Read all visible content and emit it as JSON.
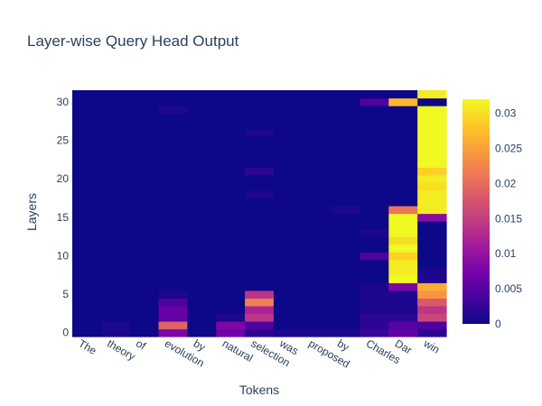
{
  "chart_data": {
    "type": "heatmap",
    "title": "Layer-wise Query Head Output",
    "xlabel": "Tokens",
    "ylabel": "Layers",
    "x": [
      "The",
      "theory",
      "of",
      "evolution",
      "by",
      "natural",
      "selection",
      "was",
      "proposed",
      "by",
      "Charles",
      "Dar",
      "win"
    ],
    "y_range": [
      0,
      31
    ],
    "y_ticks": [
      "0",
      "5",
      "10",
      "15",
      "20",
      "25",
      "30"
    ],
    "colorbar": {
      "range": [
        0,
        0.032
      ],
      "ticks": [
        "0",
        "0.005",
        "0.01",
        "0.015",
        "0.02",
        "0.025",
        "0.03"
      ],
      "colorscale": [
        "#0d0887",
        "#46039f",
        "#7201a8",
        "#9c179e",
        "#bd3786",
        "#d8576b",
        "#ed7953",
        "#fb9f3a",
        "#fdca26",
        "#f0f921"
      ]
    },
    "z": [
      [
        0.0,
        0.001,
        0.0,
        0.008,
        0.0,
        0.007,
        0.002,
        0.001,
        0.001,
        0.001,
        0.003,
        0.006,
        0.002
      ],
      [
        0.0,
        0.001,
        0.0,
        0.019,
        0.0,
        0.008,
        0.004,
        0.0,
        0.0,
        0.0,
        0.002,
        0.005,
        0.004
      ],
      [
        0.0,
        0.0,
        0.0,
        0.006,
        0.0,
        0.001,
        0.014,
        0.0,
        0.0,
        0.0,
        0.002,
        0.002,
        0.016
      ],
      [
        0.0,
        0.0,
        0.0,
        0.006,
        0.0,
        0.0,
        0.012,
        0.0,
        0.0,
        0.0,
        0.001,
        0.001,
        0.014
      ],
      [
        0.0,
        0.0,
        0.0,
        0.004,
        0.0,
        0.0,
        0.022,
        0.0,
        0.0,
        0.0,
        0.001,
        0.001,
        0.018
      ],
      [
        0.0,
        0.0,
        0.0,
        0.001,
        0.0,
        0.0,
        0.014,
        0.0,
        0.0,
        0.0,
        0.001,
        0.001,
        0.024
      ],
      [
        0.0,
        0.0,
        0.0,
        0.0,
        0.0,
        0.0,
        0.0,
        0.0,
        0.0,
        0.0,
        0.001,
        0.008,
        0.026
      ],
      [
        0.0,
        0.0,
        0.0,
        0.0,
        0.0,
        0.0,
        0.0,
        0.0,
        0.0,
        0.0,
        0.0,
        0.032,
        0.001
      ],
      [
        0.0,
        0.0,
        0.0,
        0.0,
        0.0,
        0.0,
        0.0,
        0.0,
        0.0,
        0.0,
        0.0,
        0.031,
        0.001
      ],
      [
        0.0,
        0.0,
        0.0,
        0.0,
        0.0,
        0.0,
        0.0,
        0.0,
        0.0,
        0.0,
        0.0,
        0.031,
        0.0
      ],
      [
        0.0,
        0.0,
        0.0,
        0.0,
        0.0,
        0.0,
        0.0,
        0.0,
        0.0,
        0.0,
        0.004,
        0.029,
        0.0
      ],
      [
        0.0,
        0.0,
        0.0,
        0.0,
        0.0,
        0.0,
        0.0,
        0.0,
        0.0,
        0.0,
        0.0,
        0.032,
        0.0
      ],
      [
        0.0,
        0.0,
        0.0,
        0.0,
        0.0,
        0.0,
        0.0,
        0.0,
        0.0,
        0.0,
        0.0,
        0.03,
        0.0
      ],
      [
        0.0,
        0.0,
        0.0,
        0.0,
        0.0,
        0.0,
        0.0,
        0.0,
        0.0,
        0.0,
        0.001,
        0.032,
        0.0
      ],
      [
        0.0,
        0.0,
        0.0,
        0.0,
        0.0,
        0.0,
        0.0,
        0.0,
        0.0,
        0.0,
        0.0,
        0.032,
        0.0
      ],
      [
        0.0,
        0.0,
        0.0,
        0.0,
        0.0,
        0.0,
        0.0,
        0.0,
        0.0,
        0.0,
        0.0,
        0.032,
        0.009
      ],
      [
        0.0,
        0.0,
        0.0,
        0.0,
        0.0,
        0.0,
        0.0,
        0.0,
        0.0,
        0.001,
        0.0,
        0.021,
        0.031
      ],
      [
        0.0,
        0.0,
        0.0,
        0.0,
        0.0,
        0.0,
        0.0,
        0.0,
        0.0,
        0.0,
        0.0,
        0.0,
        0.031
      ],
      [
        0.0,
        0.0,
        0.0,
        0.0,
        0.0,
        0.0,
        0.001,
        0.0,
        0.0,
        0.0,
        0.0,
        0.0,
        0.031
      ],
      [
        0.0,
        0.0,
        0.0,
        0.0,
        0.0,
        0.0,
        0.0,
        0.0,
        0.0,
        0.0,
        0.0,
        0.0,
        0.03
      ],
      [
        0.0,
        0.0,
        0.0,
        0.0,
        0.0,
        0.0,
        0.0,
        0.0,
        0.0,
        0.0,
        0.0,
        0.0,
        0.031
      ],
      [
        0.0,
        0.0,
        0.0,
        0.0,
        0.0,
        0.0,
        0.002,
        0.0,
        0.0,
        0.0,
        0.0,
        0.0,
        0.029
      ],
      [
        0.0,
        0.0,
        0.0,
        0.0,
        0.0,
        0.0,
        0.0,
        0.0,
        0.0,
        0.0,
        0.0,
        0.0,
        0.032
      ],
      [
        0.0,
        0.0,
        0.0,
        0.0,
        0.0,
        0.0,
        0.0,
        0.0,
        0.0,
        0.0,
        0.0,
        0.0,
        0.032
      ],
      [
        0.0,
        0.0,
        0.0,
        0.0,
        0.0,
        0.0,
        0.0,
        0.0,
        0.0,
        0.0,
        0.0,
        0.0,
        0.032
      ],
      [
        0.0,
        0.0,
        0.0,
        0.0,
        0.0,
        0.0,
        0.0,
        0.0,
        0.0,
        0.0,
        0.0,
        0.0,
        0.032
      ],
      [
        0.0,
        0.0,
        0.0,
        0.0,
        0.0,
        0.0,
        0.001,
        0.0,
        0.0,
        0.0,
        0.0,
        0.0,
        0.032
      ],
      [
        0.0,
        0.0,
        0.0,
        0.0,
        0.0,
        0.0,
        0.0,
        0.0,
        0.0,
        0.0,
        0.0,
        0.0,
        0.032
      ],
      [
        0.0,
        0.0,
        0.0,
        0.0,
        0.0,
        0.0,
        0.0,
        0.0,
        0.0,
        0.0,
        0.0,
        0.0,
        0.032
      ],
      [
        0.0,
        0.0,
        0.0,
        0.001,
        0.0,
        0.0,
        0.0,
        0.0,
        0.0,
        0.0,
        0.0,
        0.0,
        0.032
      ],
      [
        0.0,
        0.0,
        0.0,
        0.0,
        0.0,
        0.0,
        0.0,
        0.0,
        0.0,
        0.0,
        0.004,
        0.027,
        0.0
      ],
      [
        0.0,
        0.0,
        0.0,
        0.0,
        0.0,
        0.0,
        0.0,
        0.0,
        0.0,
        0.0,
        0.0,
        0.0,
        0.031
      ]
    ]
  }
}
